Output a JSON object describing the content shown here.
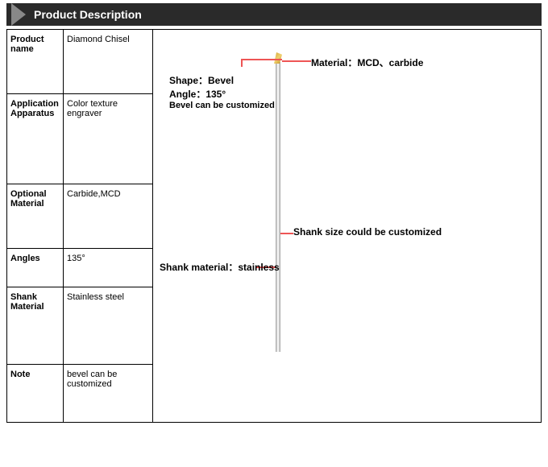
{
  "header": {
    "title": "Product Description"
  },
  "table": {
    "rows": [
      {
        "label": "Product name",
        "value": "Diamond Chisel"
      },
      {
        "label": "Application Apparatus",
        "value": "Color texture engraver"
      },
      {
        "label": "Optional Material",
        "value": "Carbide,MCD"
      },
      {
        "label": "Angles",
        "value": "135°"
      },
      {
        "label": "Shank Material",
        "value": "Stainless steel"
      },
      {
        "label": "Note",
        "value": "bevel can be customized"
      }
    ]
  },
  "diagram": {
    "shape_label": "Shape：Bevel",
    "angle_label": "Angle：135°",
    "bevel_note": "Bevel can be customized",
    "material_label": "Material：MCD、carbide",
    "shank_size_label": "Shank size could be customized",
    "shank_material_label": "Shank material：stainless",
    "colors": {
      "leader_line": "#e55555",
      "shank_light": "#dddddd",
      "shank_dark": "#999999",
      "tip_gold": "#d4a838"
    }
  }
}
